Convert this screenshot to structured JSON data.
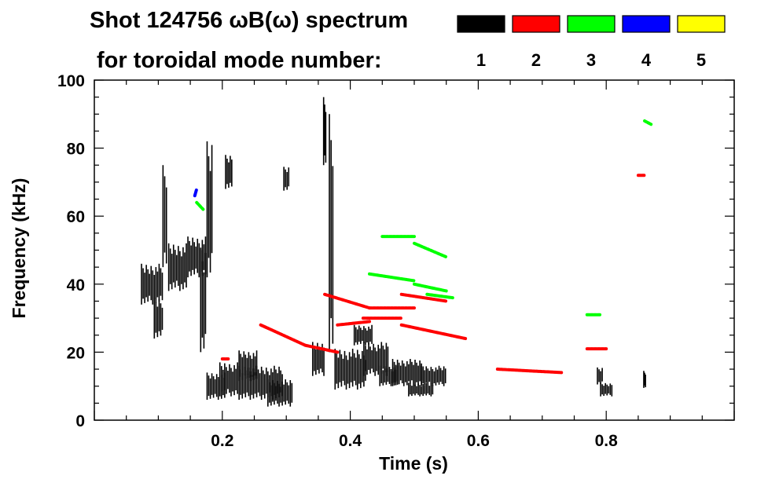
{
  "chart_data": {
    "type": "scatter",
    "title": "Shot 124756 ωB(ω) spectrum",
    "subtitle": "for toroidal mode number:",
    "xlabel": "Time (s)",
    "ylabel": "Frequency (kHz)",
    "xlim": [
      0.0,
      1.0
    ],
    "ylim": [
      0,
      100
    ],
    "x_ticks": [
      0.2,
      0.4,
      0.6,
      0.8
    ],
    "x_tick_labels": [
      "0.2",
      "0.4",
      "0.6",
      "0.8"
    ],
    "y_ticks": [
      0,
      20,
      40,
      60,
      80,
      100
    ],
    "y_tick_labels": [
      "0",
      "20",
      "40",
      "60",
      "80",
      "100"
    ],
    "legend_position": "top-right",
    "series": [
      {
        "name": "1",
        "color": "#000000",
        "marker": "block",
        "points": [
          [
            0.09,
            40,
            0.035,
            12
          ],
          [
            0.1,
            30,
            0.015,
            12
          ],
          [
            0.13,
            45,
            0.03,
            14
          ],
          [
            0.16,
            48,
            0.03,
            12
          ],
          [
            0.18,
            62,
            0.01,
            40
          ],
          [
            0.19,
            10,
            0.03,
            8
          ],
          [
            0.21,
            12,
            0.03,
            10
          ],
          [
            0.21,
            73,
            0.012,
            10
          ],
          [
            0.26,
            11,
            0.07,
            10
          ],
          [
            0.29,
            8,
            0.04,
            8
          ],
          [
            0.24,
            16,
            0.03,
            9
          ],
          [
            0.3,
            71,
            0.01,
            7
          ],
          [
            0.37,
            55,
            0.008,
            70
          ],
          [
            0.4,
            15,
            0.05,
            12
          ],
          [
            0.44,
            18,
            0.04,
            10
          ],
          [
            0.49,
            14,
            0.05,
            8
          ],
          [
            0.53,
            13,
            0.04,
            6
          ],
          [
            0.46,
            13,
            0.03,
            6
          ],
          [
            0.35,
            18,
            0.02,
            10
          ],
          [
            0.8,
            9,
            0.02,
            4
          ],
          [
            0.79,
            13,
            0.01,
            5
          ],
          [
            0.86,
            12,
            0.004,
            5
          ],
          [
            0.11,
            60,
            0.008,
            30
          ],
          [
            0.17,
            35,
            0.01,
            30
          ],
          [
            0.36,
            85,
            0.005,
            20
          ],
          [
            0.42,
            25,
            0.03,
            6
          ],
          [
            0.51,
            9,
            0.04,
            4
          ]
        ]
      },
      {
        "name": "2",
        "color": "#ff0000",
        "marker": "line",
        "points": [
          [
            0.36,
            37,
            0.43,
            33
          ],
          [
            0.43,
            33,
            0.5,
            33
          ],
          [
            0.48,
            37,
            0.55,
            35
          ],
          [
            0.26,
            28,
            0.33,
            22
          ],
          [
            0.33,
            22,
            0.38,
            20
          ],
          [
            0.48,
            28,
            0.58,
            24
          ],
          [
            0.42,
            30,
            0.48,
            30
          ],
          [
            0.38,
            28,
            0.43,
            29
          ],
          [
            0.63,
            15,
            0.73,
            14
          ],
          [
            0.77,
            21,
            0.8,
            21
          ],
          [
            0.85,
            72,
            0.86,
            72
          ],
          [
            0.2,
            18,
            0.21,
            18
          ]
        ]
      },
      {
        "name": "3",
        "color": "#00ff00",
        "marker": "line",
        "points": [
          [
            0.45,
            54,
            0.5,
            54
          ],
          [
            0.5,
            52,
            0.55,
            48
          ],
          [
            0.43,
            43,
            0.5,
            41
          ],
          [
            0.5,
            40,
            0.55,
            38
          ],
          [
            0.52,
            37,
            0.56,
            36
          ],
          [
            0.77,
            31,
            0.79,
            31
          ],
          [
            0.86,
            88,
            0.87,
            87
          ],
          [
            0.16,
            64,
            0.17,
            62
          ]
        ]
      },
      {
        "name": "4",
        "color": "#0000ff",
        "marker": "line",
        "points": [
          [
            0.157,
            66,
            0.16,
            68
          ]
        ]
      },
      {
        "name": "5",
        "color": "#ffff00",
        "marker": "line",
        "points": []
      }
    ]
  }
}
